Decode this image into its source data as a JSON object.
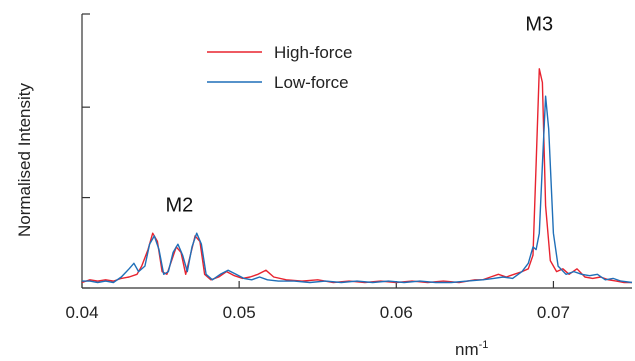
{
  "chart_data": {
    "type": "line",
    "title": "",
    "xlabel": "nm",
    "xlabel_superscript": "-1",
    "ylabel": "Normalised Intensity",
    "xlim": [
      0.04,
      0.075
    ],
    "ylim": [
      0,
      1.0
    ],
    "x_ticks": [
      0.04,
      0.05,
      0.06,
      0.07
    ],
    "x_tick_labels": [
      "0.04",
      "0.05",
      "0.06",
      "0.07"
    ],
    "y_ticks": [
      0,
      0.33,
      0.66,
      1.0
    ],
    "y_tick_labels": [],
    "grid": false,
    "legend": {
      "position": "top-center"
    },
    "series": [
      {
        "name": "High-force",
        "color": "#e8232f",
        "points": [
          [
            0.04,
            0.02
          ],
          [
            0.0405,
            0.03
          ],
          [
            0.041,
            0.025
          ],
          [
            0.0415,
            0.03
          ],
          [
            0.042,
            0.025
          ],
          [
            0.0425,
            0.035
          ],
          [
            0.043,
            0.04
          ],
          [
            0.0435,
            0.05
          ],
          [
            0.0438,
            0.08
          ],
          [
            0.0442,
            0.14
          ],
          [
            0.0445,
            0.2
          ],
          [
            0.0448,
            0.17
          ],
          [
            0.0451,
            0.06
          ],
          [
            0.0454,
            0.05
          ],
          [
            0.0457,
            0.1
          ],
          [
            0.046,
            0.15
          ],
          [
            0.0463,
            0.13
          ],
          [
            0.0466,
            0.05
          ],
          [
            0.0469,
            0.12
          ],
          [
            0.0472,
            0.19
          ],
          [
            0.0475,
            0.17
          ],
          [
            0.0478,
            0.05
          ],
          [
            0.0482,
            0.03
          ],
          [
            0.0487,
            0.04
          ],
          [
            0.0492,
            0.06
          ],
          [
            0.0497,
            0.045
          ],
          [
            0.0502,
            0.035
          ],
          [
            0.0507,
            0.04
          ],
          [
            0.0512,
            0.05
          ],
          [
            0.0517,
            0.065
          ],
          [
            0.0522,
            0.04
          ],
          [
            0.053,
            0.03
          ],
          [
            0.054,
            0.025
          ],
          [
            0.055,
            0.03
          ],
          [
            0.056,
            0.02
          ],
          [
            0.057,
            0.025
          ],
          [
            0.058,
            0.02
          ],
          [
            0.059,
            0.025
          ],
          [
            0.06,
            0.02
          ],
          [
            0.061,
            0.025
          ],
          [
            0.062,
            0.02
          ],
          [
            0.063,
            0.025
          ],
          [
            0.064,
            0.02
          ],
          [
            0.065,
            0.03
          ],
          [
            0.0655,
            0.03
          ],
          [
            0.066,
            0.04
          ],
          [
            0.0665,
            0.05
          ],
          [
            0.067,
            0.04
          ],
          [
            0.0675,
            0.05
          ],
          [
            0.068,
            0.06
          ],
          [
            0.0684,
            0.07
          ],
          [
            0.0687,
            0.12
          ],
          [
            0.0689,
            0.45
          ],
          [
            0.0691,
            0.8
          ],
          [
            0.0693,
            0.75
          ],
          [
            0.0695,
            0.3
          ],
          [
            0.0698,
            0.1
          ],
          [
            0.0702,
            0.06
          ],
          [
            0.0706,
            0.07
          ],
          [
            0.071,
            0.05
          ],
          [
            0.0715,
            0.07
          ],
          [
            0.072,
            0.04
          ],
          [
            0.0725,
            0.035
          ],
          [
            0.073,
            0.04
          ],
          [
            0.0735,
            0.03
          ],
          [
            0.074,
            0.025
          ],
          [
            0.0745,
            0.02
          ],
          [
            0.075,
            0.02
          ]
        ]
      },
      {
        "name": "Low-force",
        "color": "#1f6fb8",
        "points": [
          [
            0.04,
            0.025
          ],
          [
            0.0405,
            0.025
          ],
          [
            0.041,
            0.02
          ],
          [
            0.0415,
            0.025
          ],
          [
            0.042,
            0.02
          ],
          [
            0.0425,
            0.04
          ],
          [
            0.043,
            0.07
          ],
          [
            0.0433,
            0.09
          ],
          [
            0.0436,
            0.06
          ],
          [
            0.044,
            0.08
          ],
          [
            0.0443,
            0.16
          ],
          [
            0.0446,
            0.19
          ],
          [
            0.0449,
            0.14
          ],
          [
            0.0452,
            0.05
          ],
          [
            0.0455,
            0.06
          ],
          [
            0.0458,
            0.13
          ],
          [
            0.0461,
            0.16
          ],
          [
            0.0464,
            0.12
          ],
          [
            0.0467,
            0.06
          ],
          [
            0.047,
            0.15
          ],
          [
            0.0473,
            0.2
          ],
          [
            0.0476,
            0.16
          ],
          [
            0.0479,
            0.05
          ],
          [
            0.0483,
            0.03
          ],
          [
            0.0488,
            0.05
          ],
          [
            0.0493,
            0.065
          ],
          [
            0.0498,
            0.05
          ],
          [
            0.0503,
            0.035
          ],
          [
            0.0508,
            0.03
          ],
          [
            0.0513,
            0.04
          ],
          [
            0.0518,
            0.03
          ],
          [
            0.0525,
            0.025
          ],
          [
            0.0535,
            0.025
          ],
          [
            0.0545,
            0.02
          ],
          [
            0.0555,
            0.025
          ],
          [
            0.0565,
            0.02
          ],
          [
            0.0575,
            0.025
          ],
          [
            0.0585,
            0.02
          ],
          [
            0.0595,
            0.025
          ],
          [
            0.0605,
            0.02
          ],
          [
            0.0615,
            0.025
          ],
          [
            0.0625,
            0.02
          ],
          [
            0.0635,
            0.02
          ],
          [
            0.0645,
            0.025
          ],
          [
            0.0655,
            0.03
          ],
          [
            0.0662,
            0.035
          ],
          [
            0.0668,
            0.04
          ],
          [
            0.0674,
            0.035
          ],
          [
            0.068,
            0.06
          ],
          [
            0.0684,
            0.09
          ],
          [
            0.0687,
            0.15
          ],
          [
            0.0689,
            0.14
          ],
          [
            0.0691,
            0.2
          ],
          [
            0.0693,
            0.45
          ],
          [
            0.0695,
            0.7
          ],
          [
            0.0697,
            0.58
          ],
          [
            0.07,
            0.2
          ],
          [
            0.0703,
            0.08
          ],
          [
            0.0708,
            0.05
          ],
          [
            0.0713,
            0.06
          ],
          [
            0.0718,
            0.05
          ],
          [
            0.0723,
            0.045
          ],
          [
            0.0728,
            0.05
          ],
          [
            0.0733,
            0.03
          ],
          [
            0.0738,
            0.035
          ],
          [
            0.0743,
            0.025
          ],
          [
            0.075,
            0.02
          ]
        ]
      }
    ],
    "annotations": [
      {
        "text": "M2",
        "x": 0.0462,
        "y": 0.28
      },
      {
        "text": "M3",
        "x": 0.0691,
        "y": 0.94
      }
    ]
  }
}
